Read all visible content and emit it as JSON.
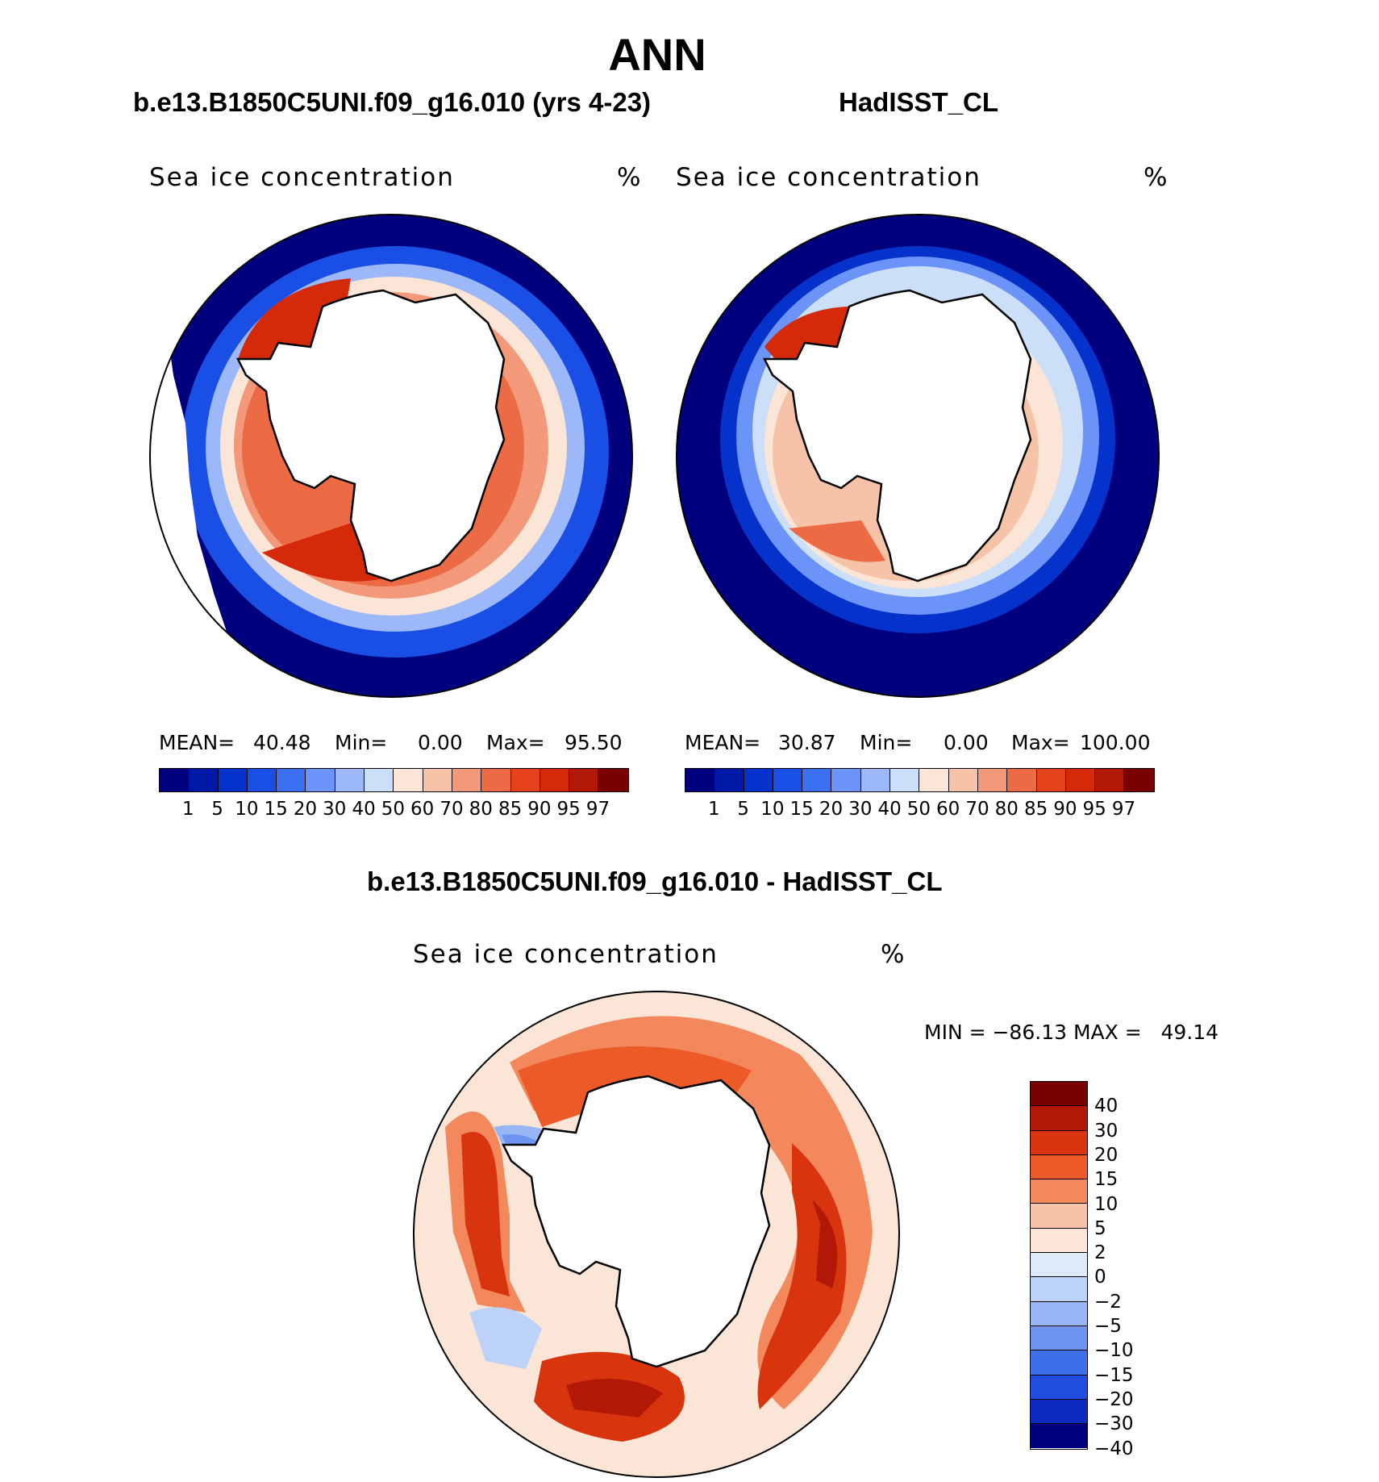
{
  "title": "ANN",
  "panels": [
    {
      "case_title": "b.e13.B1850C5UNI.f09_g16.010 (yrs 4-23)",
      "variable": "Sea ice concentration",
      "units": "%",
      "mean_label": "MEAN=",
      "mean": "40.48",
      "min_label": "Min=",
      "min": "0.00",
      "max_label": "Max=",
      "max": "95.50"
    },
    {
      "case_title": "HadISST_CL",
      "variable": "Sea ice concentration",
      "units": "%",
      "mean_label": "MEAN=",
      "mean": "30.87",
      "min_label": "Min=",
      "min": "0.00",
      "max_label": "Max=",
      "max": "100.00"
    }
  ],
  "seq_colorbar": {
    "ticks": [
      "1",
      "5",
      "10",
      "15",
      "20",
      "30",
      "40",
      "50",
      "60",
      "70",
      "80",
      "85",
      "90",
      "95",
      "97"
    ],
    "colors": [
      "#00007f",
      "#0018a8",
      "#0632cc",
      "#1a4fe6",
      "#3b70f2",
      "#6c93f7",
      "#9db8f8",
      "#ccdff9",
      "#fbe5d6",
      "#f7c3a8",
      "#f39878",
      "#ec6b45",
      "#e4431c",
      "#d52a0a",
      "#b11906",
      "#7a0000"
    ]
  },
  "diff_panel": {
    "case_title": "b.e13.B1850C5UNI.f09_g16.010 - HadISST_CL",
    "variable": "Sea ice concentration",
    "units": "%",
    "minmax_text": "MIN = −86.13 MAX =   49.14"
  },
  "diff_colorbar": {
    "ticks": [
      "40",
      "30",
      "20",
      "15",
      "10",
      "5",
      "2",
      "0",
      "−2",
      "−5",
      "−10",
      "−15",
      "−20",
      "−30",
      "−40"
    ],
    "colors": [
      "#7a0000",
      "#b11906",
      "#d8340e",
      "#ec5a28",
      "#f3885c",
      "#f7c3a8",
      "#fbe5d6",
      "#ddeaf9",
      "#bcd2f8",
      "#98b5f6",
      "#6e94f2",
      "#3f6fe8",
      "#1f4de0",
      "#0b2bc0",
      "#00007f"
    ]
  },
  "palette": {
    "land": "#ffffff",
    "coast": "#000000"
  }
}
